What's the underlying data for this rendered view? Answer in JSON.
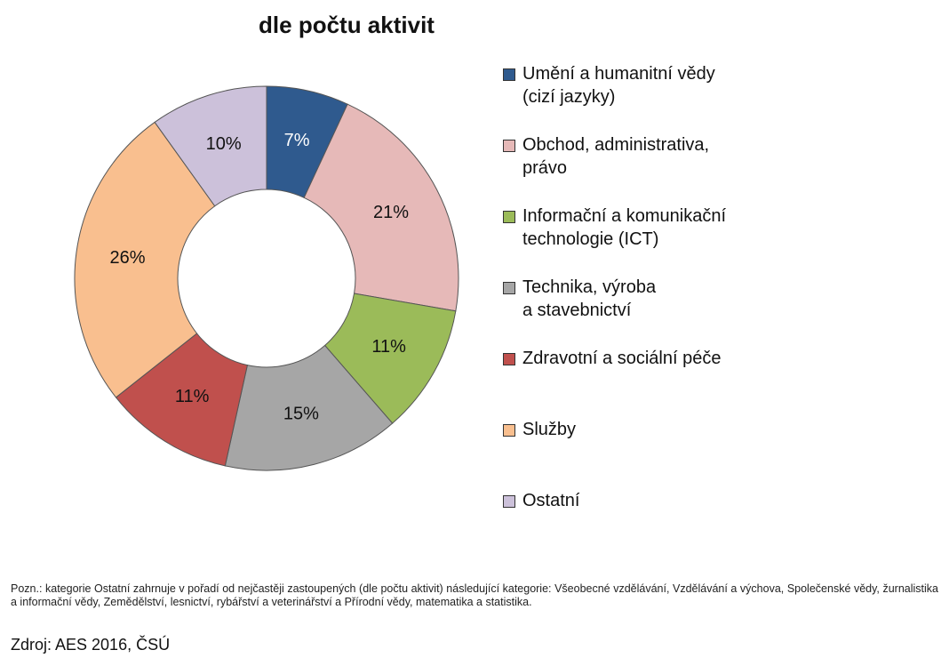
{
  "chart_data": {
    "type": "donut",
    "title": "dle počtu aktivit",
    "categories": [
      "Umění a humanitní vědy\n(cizí jazyky)",
      "Obchod, administrativa,\nprávo",
      "Informační a komunikační\ntechnologie (ICT)",
      "Technika, výroba\na stavebnictví",
      "Zdravotní a sociální péče",
      "Služby",
      "Ostatní"
    ],
    "values": [
      7,
      21,
      11,
      15,
      11,
      26,
      10
    ],
    "value_labels": [
      "7%",
      "21%",
      "11%",
      "15%",
      "11%",
      "26%",
      "10%"
    ],
    "colors": [
      "#2f5a8e",
      "#e6b9b8",
      "#9bbb59",
      "#a6a6a6",
      "#c0504d",
      "#f9bf8f",
      "#ccc1da"
    ],
    "legend": "right"
  },
  "note": "Pozn.: kategorie Ostatní zahrnuje v pořadí od nejčastěji zastoupených (dle počtu aktivit) následující kategorie: Všeobecné vzdělávání, Vzdělávání a výchova, Společenské vědy, žurnalistika a informační vědy, Zemědělství, lesnictví, rybářství a veterinářství a Přírodní vědy, matematika a statistika.",
  "source": "Zdroj: AES 2016, ČSÚ"
}
